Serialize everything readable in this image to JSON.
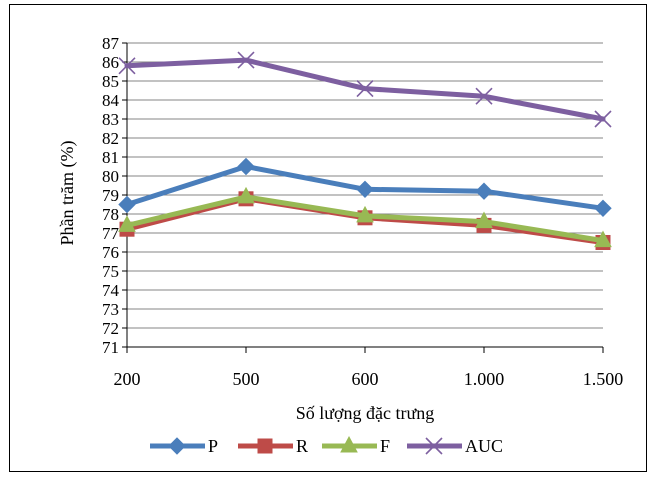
{
  "chart_data": {
    "type": "line",
    "title": "",
    "xlabel": "Số lượng đặc trưng",
    "ylabel": "Phần trăm (%)",
    "categories": [
      "200",
      "500",
      "600",
      "1.000",
      "1.500"
    ],
    "ylim": [
      71,
      87
    ],
    "ytick_step": 1,
    "grid": true,
    "legend_position": "bottom",
    "series": [
      {
        "name": "P",
        "values": [
          78.5,
          80.5,
          79.3,
          79.2,
          78.3
        ],
        "color": "#4a7ebb",
        "marker": "diamond"
      },
      {
        "name": "R",
        "values": [
          77.2,
          78.8,
          77.8,
          77.4,
          76.5
        ],
        "color": "#be4b48",
        "marker": "square"
      },
      {
        "name": "F",
        "values": [
          77.4,
          78.9,
          77.9,
          77.6,
          76.6
        ],
        "color": "#98b954",
        "marker": "triangle"
      },
      {
        "name": "AUC",
        "values": [
          85.8,
          86.1,
          84.6,
          84.2,
          83.0
        ],
        "color": "#7d5fa0",
        "marker": "x"
      }
    ]
  }
}
